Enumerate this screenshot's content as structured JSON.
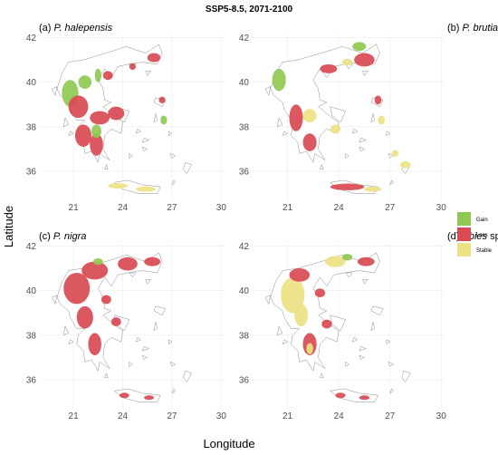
{
  "figure": {
    "title": "SSP5-8.5, 2071-2100",
    "xlabel": "Longitude",
    "ylabel": "Latitude"
  },
  "colors": {
    "gain": "#8fc952",
    "loss": "#d94a52",
    "stable": "#ebe283",
    "grid": "#ececec",
    "coast": "#8c8c8c"
  },
  "legend": [
    {
      "key": "gain",
      "label": "Gain"
    },
    {
      "key": "loss",
      "label": "Loss"
    },
    {
      "key": "stable",
      "label": "Stable"
    }
  ],
  "axes": {
    "xlim": [
      18.9,
      30.2
    ],
    "ylim": [
      34.7,
      42.1
    ],
    "xticks": [
      21,
      24,
      27,
      30
    ],
    "yticks": [
      36,
      38,
      40,
      42
    ]
  },
  "panels": [
    {
      "prefix": "(a) ",
      "species": "P. halepensis",
      "suffix": "",
      "patches": [
        {
          "cat": "gain",
          "lon": 20.8,
          "lat": 39.5,
          "rx": 0.5,
          "ry": 0.6
        },
        {
          "cat": "gain",
          "lon": 21.7,
          "lat": 40.0,
          "rx": 0.4,
          "ry": 0.3
        },
        {
          "cat": "loss",
          "lon": 21.3,
          "lat": 38.9,
          "rx": 0.6,
          "ry": 0.5
        },
        {
          "cat": "loss",
          "lon": 21.6,
          "lat": 37.6,
          "rx": 0.5,
          "ry": 0.5
        },
        {
          "cat": "loss",
          "lon": 22.4,
          "lat": 37.2,
          "rx": 0.4,
          "ry": 0.5
        },
        {
          "cat": "loss",
          "lon": 22.6,
          "lat": 38.4,
          "rx": 0.6,
          "ry": 0.3
        },
        {
          "cat": "gain",
          "lon": 22.4,
          "lat": 37.8,
          "rx": 0.3,
          "ry": 0.3
        },
        {
          "cat": "loss",
          "lon": 23.6,
          "lat": 38.6,
          "rx": 0.5,
          "ry": 0.3
        },
        {
          "cat": "loss",
          "lon": 23.1,
          "lat": 40.3,
          "rx": 0.3,
          "ry": 0.2
        },
        {
          "cat": "loss",
          "lon": 25.9,
          "lat": 41.1,
          "rx": 0.4,
          "ry": 0.2
        },
        {
          "cat": "loss",
          "lon": 24.6,
          "lat": 40.7,
          "rx": 0.2,
          "ry": 0.15
        },
        {
          "cat": "gain",
          "lon": 22.5,
          "lat": 40.3,
          "rx": 0.2,
          "ry": 0.3
        },
        {
          "cat": "stable",
          "lon": 23.7,
          "lat": 35.35,
          "rx": 0.6,
          "ry": 0.12
        },
        {
          "cat": "stable",
          "lon": 25.4,
          "lat": 35.2,
          "rx": 0.6,
          "ry": 0.12
        },
        {
          "cat": "gain",
          "lon": 26.5,
          "lat": 38.3,
          "rx": 0.2,
          "ry": 0.2
        },
        {
          "cat": "loss",
          "lon": 26.4,
          "lat": 39.2,
          "rx": 0.2,
          "ry": 0.15
        }
      ]
    },
    {
      "prefix": "(b) ",
      "species": "P. brutia",
      "suffix": "",
      "patches": [
        {
          "cat": "gain",
          "lon": 20.5,
          "lat": 40.1,
          "rx": 0.4,
          "ry": 0.5
        },
        {
          "cat": "loss",
          "lon": 21.5,
          "lat": 38.4,
          "rx": 0.4,
          "ry": 0.6
        },
        {
          "cat": "loss",
          "lon": 22.3,
          "lat": 37.3,
          "rx": 0.4,
          "ry": 0.4
        },
        {
          "cat": "stable",
          "lon": 22.3,
          "lat": 38.5,
          "rx": 0.4,
          "ry": 0.3
        },
        {
          "cat": "loss",
          "lon": 23.4,
          "lat": 40.6,
          "rx": 0.5,
          "ry": 0.2
        },
        {
          "cat": "loss",
          "lon": 25.5,
          "lat": 41.0,
          "rx": 0.6,
          "ry": 0.3
        },
        {
          "cat": "gain",
          "lon": 25.2,
          "lat": 41.6,
          "rx": 0.4,
          "ry": 0.2
        },
        {
          "cat": "stable",
          "lon": 24.5,
          "lat": 40.9,
          "rx": 0.3,
          "ry": 0.15
        },
        {
          "cat": "loss",
          "lon": 26.3,
          "lat": 39.2,
          "rx": 0.2,
          "ry": 0.2
        },
        {
          "cat": "stable",
          "lon": 26.5,
          "lat": 38.3,
          "rx": 0.2,
          "ry": 0.2
        },
        {
          "cat": "stable",
          "lon": 23.8,
          "lat": 37.9,
          "rx": 0.3,
          "ry": 0.2
        },
        {
          "cat": "loss",
          "lon": 24.5,
          "lat": 35.3,
          "rx": 1.0,
          "ry": 0.15
        },
        {
          "cat": "stable",
          "lon": 26.0,
          "lat": 35.2,
          "rx": 0.5,
          "ry": 0.12
        },
        {
          "cat": "stable",
          "lon": 27.9,
          "lat": 36.3,
          "rx": 0.3,
          "ry": 0.15
        },
        {
          "cat": "stable",
          "lon": 27.3,
          "lat": 36.8,
          "rx": 0.2,
          "ry": 0.15
        }
      ]
    },
    {
      "prefix": "(c) ",
      "species": "P. nigra",
      "suffix": "",
      "patches": [
        {
          "cat": "loss",
          "lon": 21.2,
          "lat": 40.1,
          "rx": 0.8,
          "ry": 0.7
        },
        {
          "cat": "loss",
          "lon": 22.3,
          "lat": 40.9,
          "rx": 0.8,
          "ry": 0.4
        },
        {
          "cat": "loss",
          "lon": 21.7,
          "lat": 38.8,
          "rx": 0.5,
          "ry": 0.5
        },
        {
          "cat": "loss",
          "lon": 22.3,
          "lat": 37.6,
          "rx": 0.4,
          "ry": 0.5
        },
        {
          "cat": "loss",
          "lon": 24.3,
          "lat": 41.2,
          "rx": 0.6,
          "ry": 0.3
        },
        {
          "cat": "loss",
          "lon": 25.8,
          "lat": 41.3,
          "rx": 0.5,
          "ry": 0.2
        },
        {
          "cat": "gain",
          "lon": 22.5,
          "lat": 41.3,
          "rx": 0.3,
          "ry": 0.15
        },
        {
          "cat": "loss",
          "lon": 23.0,
          "lat": 39.6,
          "rx": 0.3,
          "ry": 0.2
        },
        {
          "cat": "loss",
          "lon": 24.1,
          "lat": 35.3,
          "rx": 0.3,
          "ry": 0.12
        },
        {
          "cat": "loss",
          "lon": 25.6,
          "lat": 35.2,
          "rx": 0.3,
          "ry": 0.1
        },
        {
          "cat": "loss",
          "lon": 23.6,
          "lat": 38.6,
          "rx": 0.3,
          "ry": 0.2
        }
      ]
    },
    {
      "prefix": "(d) ",
      "species": "Abies",
      "suffix": " spp.",
      "patches": [
        {
          "cat": "stable",
          "lon": 21.3,
          "lat": 39.8,
          "rx": 0.7,
          "ry": 0.8
        },
        {
          "cat": "stable",
          "lon": 21.8,
          "lat": 38.9,
          "rx": 0.4,
          "ry": 0.5
        },
        {
          "cat": "loss",
          "lon": 22.3,
          "lat": 37.6,
          "rx": 0.4,
          "ry": 0.5
        },
        {
          "cat": "stable",
          "lon": 22.3,
          "lat": 37.4,
          "rx": 0.2,
          "ry": 0.25
        },
        {
          "cat": "loss",
          "lon": 21.7,
          "lat": 40.7,
          "rx": 0.6,
          "ry": 0.3
        },
        {
          "cat": "stable",
          "lon": 23.8,
          "lat": 41.3,
          "rx": 0.6,
          "ry": 0.25
        },
        {
          "cat": "loss",
          "lon": 25.6,
          "lat": 41.3,
          "rx": 0.5,
          "ry": 0.2
        },
        {
          "cat": "gain",
          "lon": 24.5,
          "lat": 41.5,
          "rx": 0.3,
          "ry": 0.15
        },
        {
          "cat": "loss",
          "lon": 22.9,
          "lat": 39.9,
          "rx": 0.3,
          "ry": 0.2
        },
        {
          "cat": "loss",
          "lon": 23.3,
          "lat": 38.5,
          "rx": 0.3,
          "ry": 0.2
        },
        {
          "cat": "loss",
          "lon": 24.1,
          "lat": 35.3,
          "rx": 0.3,
          "ry": 0.12
        },
        {
          "cat": "loss",
          "lon": 25.5,
          "lat": 35.2,
          "rx": 0.3,
          "ry": 0.1
        }
      ]
    }
  ]
}
